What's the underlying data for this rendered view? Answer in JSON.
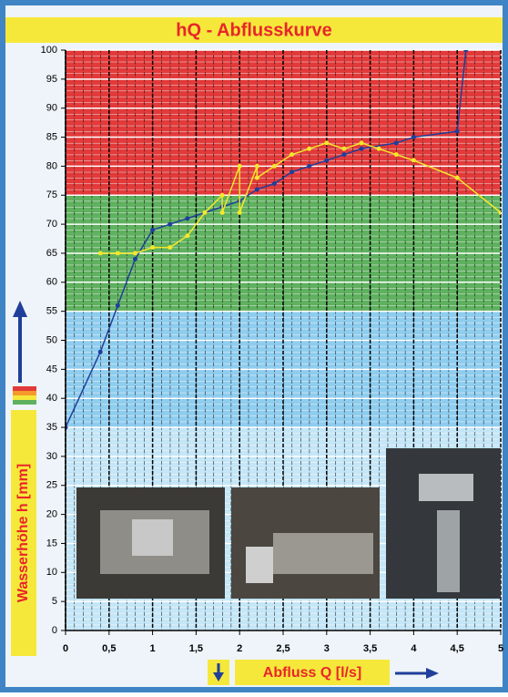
{
  "chart_data": {
    "type": "line",
    "title": "hQ - Abflusskurve",
    "x_label": "Abfluss Q [l/s]",
    "y_label": "Wasserhöhe h [mm]",
    "xlim": [
      0,
      5
    ],
    "ylim": [
      0,
      100
    ],
    "xticks": [
      0,
      {
        "value": 0.5,
        "label": "0,5"
      },
      1,
      {
        "value": 1.5,
        "label": "1,5"
      },
      2,
      {
        "value": 2.5,
        "label": "2,5"
      },
      3,
      {
        "value": 3.5,
        "label": "3,5"
      },
      4,
      {
        "value": 4.5,
        "label": "4,5"
      },
      5
    ],
    "yticks": [
      0,
      5,
      10,
      15,
      20,
      25,
      30,
      35,
      40,
      45,
      50,
      55,
      60,
      65,
      70,
      75,
      80,
      85,
      90,
      95,
      100
    ],
    "bands": [
      {
        "from": 75,
        "to": 100,
        "color": "#e23a3a"
      },
      {
        "from": 55,
        "to": 75,
        "color": "#5fb15f"
      },
      {
        "from": 35,
        "to": 55,
        "color": "#8fcdef"
      },
      {
        "from": 0,
        "to": 35,
        "color": "#c4e6f7"
      }
    ],
    "series": [
      {
        "color": "#1f3f9a",
        "x": [
          0,
          0.4,
          0.6,
          0.8,
          1,
          1.2,
          1.4,
          1.8,
          2,
          2.2,
          2.4,
          2.6,
          2.8,
          3,
          3.2,
          3.4,
          3.8,
          4,
          4.5,
          4.6
        ],
        "values": [
          35,
          48,
          56,
          64,
          69,
          70,
          71,
          73,
          74,
          76,
          77,
          79,
          80,
          81,
          82,
          83,
          84,
          85,
          86,
          100
        ]
      },
      {
        "color": "#f5e82a",
        "x": [
          0.4,
          0.6,
          0.8,
          1,
          1.2,
          1.4,
          1.6,
          1.8,
          1.8,
          2,
          2,
          2.2,
          2.2,
          2.4,
          2.6,
          2.8,
          3,
          3.2,
          3.4,
          3.6,
          3.8,
          4,
          4.5,
          5
        ],
        "values": [
          65,
          65,
          65,
          66,
          66,
          68,
          72,
          75,
          72,
          80,
          72,
          80,
          78,
          80,
          82,
          83,
          84,
          83,
          84,
          83,
          82,
          81,
          78,
          72
        ]
      }
    ]
  }
}
